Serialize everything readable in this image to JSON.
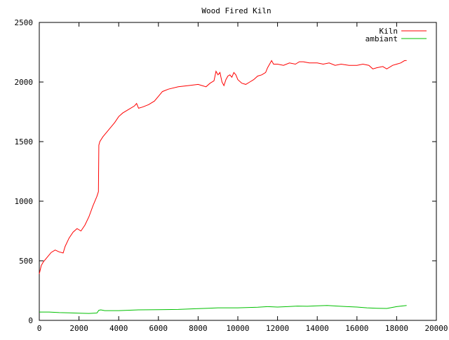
{
  "chart_data": {
    "type": "line",
    "title": "Wood Fired Kiln",
    "xlabel": "",
    "ylabel": "",
    "xlim": [
      0,
      20000
    ],
    "ylim": [
      0,
      2500
    ],
    "xticks": [
      0,
      2000,
      4000,
      6000,
      8000,
      10000,
      12000,
      14000,
      16000,
      18000,
      20000
    ],
    "yticks": [
      0,
      500,
      1000,
      1500,
      2000,
      2500
    ],
    "grid": false,
    "legend_position": "top-right",
    "series": [
      {
        "name": "Kiln",
        "color": "#ff0000",
        "x": [
          0,
          100,
          200,
          400,
          600,
          800,
          1000,
          1200,
          1300,
          1500,
          1700,
          1900,
          2100,
          2300,
          2500,
          2700,
          2900,
          2980,
          3000,
          3050,
          3200,
          3400,
          3600,
          3800,
          4000,
          4200,
          4500,
          4800,
          4900,
          5000,
          5200,
          5500,
          5800,
          6000,
          6200,
          6500,
          7000,
          7500,
          8000,
          8200,
          8400,
          8600,
          8800,
          8900,
          9000,
          9100,
          9200,
          9300,
          9400,
          9500,
          9600,
          9700,
          9800,
          9900,
          10000,
          10200,
          10400,
          10600,
          10800,
          11000,
          11200,
          11400,
          11500,
          11600,
          11700,
          11800,
          12000,
          12300,
          12600,
          12900,
          13100,
          13300,
          13600,
          14000,
          14300,
          14600,
          14900,
          15200,
          15600,
          16000,
          16300,
          16600,
          16800,
          17000,
          17300,
          17500,
          17800,
          18000,
          18200,
          18400,
          18500
        ],
        "y": [
          390,
          460,
          490,
          530,
          570,
          590,
          575,
          565,
          620,
          690,
          740,
          770,
          750,
          800,
          870,
          960,
          1040,
          1080,
          1470,
          1500,
          1540,
          1580,
          1620,
          1660,
          1710,
          1740,
          1770,
          1800,
          1820,
          1780,
          1790,
          1810,
          1840,
          1880,
          1920,
          1940,
          1960,
          1970,
          1980,
          1970,
          1960,
          1990,
          2010,
          2090,
          2060,
          2080,
          2000,
          1970,
          2020,
          2050,
          2060,
          2040,
          2080,
          2060,
          2020,
          1990,
          1980,
          2000,
          2020,
          2050,
          2060,
          2080,
          2120,
          2150,
          2180,
          2150,
          2150,
          2140,
          2160,
          2150,
          2170,
          2170,
          2160,
          2160,
          2150,
          2160,
          2140,
          2150,
          2140,
          2140,
          2150,
          2140,
          2110,
          2120,
          2130,
          2110,
          2140,
          2150,
          2160,
          2180,
          2180
        ]
      },
      {
        "name": "ambiant",
        "color": "#00c000",
        "x": [
          0,
          500,
          1000,
          1500,
          2000,
          2500,
          2900,
          3000,
          3100,
          3300,
          4000,
          5000,
          6000,
          7000,
          8000,
          8500,
          9000,
          10000,
          11000,
          11500,
          12000,
          12500,
          13000,
          13500,
          14000,
          14500,
          15000,
          15500,
          16000,
          16500,
          17000,
          17500,
          18000,
          18500
        ],
        "y": [
          70,
          70,
          65,
          63,
          60,
          58,
          62,
          85,
          88,
          82,
          82,
          88,
          90,
          92,
          98,
          102,
          105,
          105,
          110,
          115,
          112,
          115,
          120,
          118,
          122,
          125,
          120,
          115,
          112,
          105,
          102,
          100,
          115,
          125
        ]
      }
    ]
  }
}
